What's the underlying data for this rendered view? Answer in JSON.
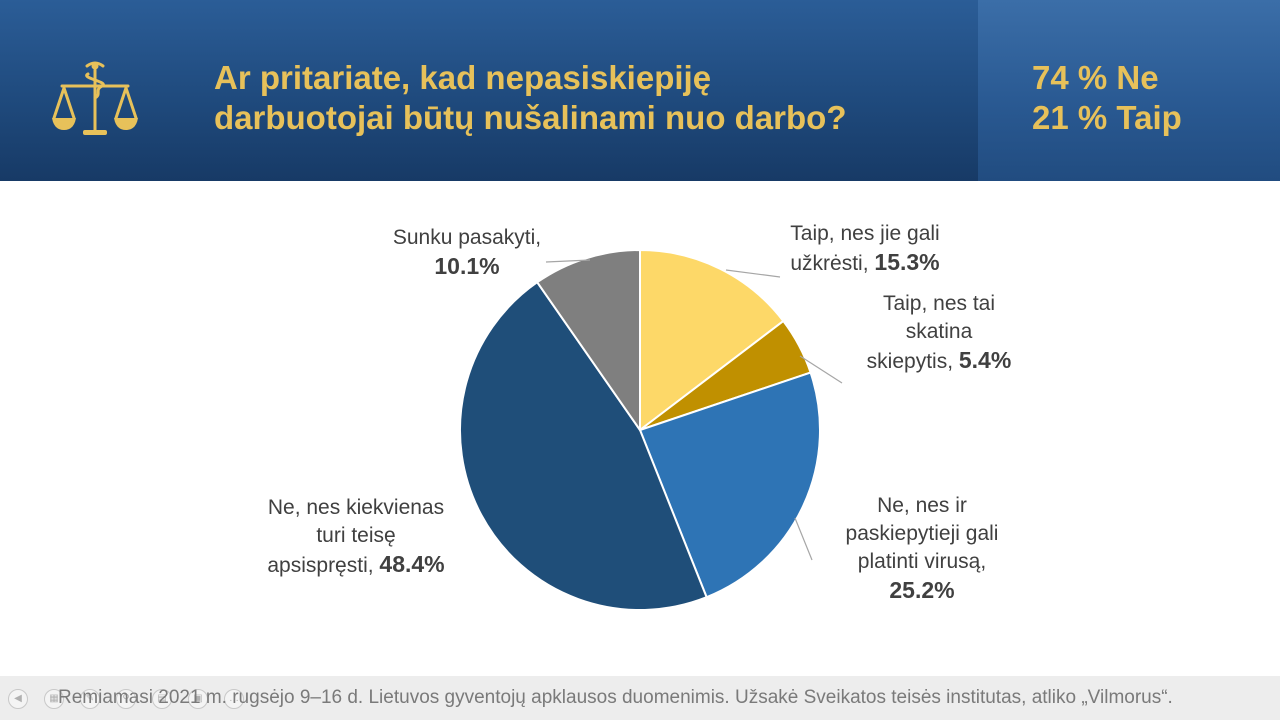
{
  "header": {
    "question_line1": "Ar pritariate, kad nepasiskiepiję",
    "question_line2": "darbuotojai būtų nušalinami nuo darbo?",
    "summary_line1": "74 % Ne",
    "summary_line2": "21 % Taip",
    "logo_icon": "scales-of-justice-icon",
    "accent_color": "#e7c15a"
  },
  "chart_data": {
    "type": "pie",
    "title": "",
    "start_angle_deg": 0,
    "direction": "clockwise",
    "slices": [
      {
        "label_lines": [
          "Taip, nes jie gali",
          "užkrėsti,"
        ],
        "value": 15.3,
        "value_label": "15.3%",
        "color": "#fdd868"
      },
      {
        "label_lines": [
          "Taip, nes tai",
          "skatina",
          "skiepytis,"
        ],
        "value": 5.4,
        "value_label": "5.4%",
        "color": "#c09000"
      },
      {
        "label_lines": [
          "Ne, nes ir",
          "paskiepytieji gali",
          "platinti virusą,"
        ],
        "value": 25.2,
        "value_label": "25.2%",
        "color": "#2e74b5"
      },
      {
        "label_lines": [
          "Ne, nes kiekvienas",
          "turi teisę",
          "apsispręsti,"
        ],
        "value": 48.4,
        "value_label": "48.4%",
        "color": "#1f4e79"
      },
      {
        "label_lines": [
          "Sunku pasakyti,"
        ],
        "value": 10.1,
        "value_label": "10.1%",
        "color": "#7f7f7f"
      }
    ]
  },
  "footer": {
    "source": "Remiamasi 2021 m. rugsėjo 9–16 d. Lietuvos gyventojų apklausos duomenimis. Užsakė Sveikatos teisės institutas, atliko „Vilmorus“."
  }
}
